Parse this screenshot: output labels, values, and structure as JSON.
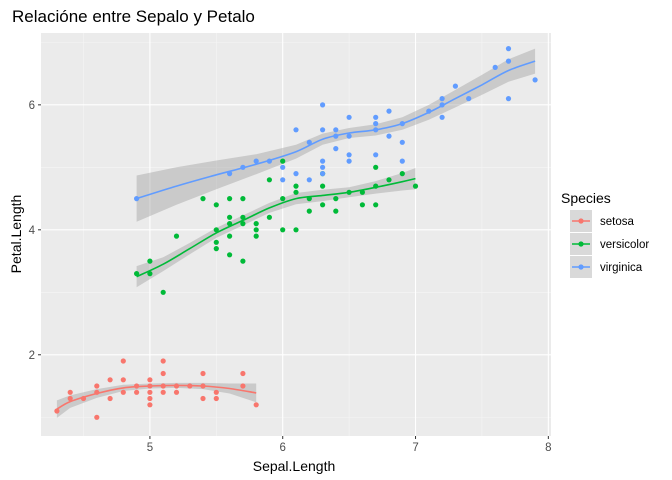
{
  "chart_data": {
    "type": "scatter",
    "title": "Relacióne entre Sepalo y Petalo",
    "xlabel": "Sepal.Length",
    "ylabel": "Petal.Length",
    "xlim": [
      4.18,
      8.02
    ],
    "ylim": [
      0.7,
      7.15
    ],
    "x_ticks": [
      5,
      6,
      7,
      8
    ],
    "x_tick_labels": [
      "5",
      "6",
      "7",
      "8"
    ],
    "y_ticks": [
      2,
      4,
      6
    ],
    "y_tick_labels": [
      "2",
      "4",
      "6"
    ],
    "grid": true,
    "legend": {
      "title": "Species",
      "position": "right"
    },
    "series": [
      {
        "name": "setosa",
        "color": "#F8766D",
        "points": [
          [
            4.3,
            1.1
          ],
          [
            4.4,
            1.3
          ],
          [
            4.4,
            1.4
          ],
          [
            4.5,
            1.3
          ],
          [
            4.6,
            1.0
          ],
          [
            4.6,
            1.4
          ],
          [
            4.6,
            1.5
          ],
          [
            4.7,
            1.3
          ],
          [
            4.7,
            1.6
          ],
          [
            4.8,
            1.4
          ],
          [
            4.8,
            1.6
          ],
          [
            4.8,
            1.9
          ],
          [
            4.9,
            1.4
          ],
          [
            4.9,
            1.5
          ],
          [
            5.0,
            1.2
          ],
          [
            5.0,
            1.3
          ],
          [
            5.0,
            1.4
          ],
          [
            5.0,
            1.5
          ],
          [
            5.0,
            1.6
          ],
          [
            5.1,
            1.4
          ],
          [
            5.1,
            1.5
          ],
          [
            5.1,
            1.7
          ],
          [
            5.1,
            1.9
          ],
          [
            5.2,
            1.4
          ],
          [
            5.2,
            1.5
          ],
          [
            5.3,
            1.5
          ],
          [
            5.4,
            1.3
          ],
          [
            5.4,
            1.5
          ],
          [
            5.4,
            1.7
          ],
          [
            5.5,
            1.3
          ],
          [
            5.5,
            1.4
          ],
          [
            5.7,
            1.5
          ],
          [
            5.7,
            1.7
          ],
          [
            5.8,
            1.2
          ]
        ],
        "smooth": [
          [
            4.3,
            1.13
          ],
          [
            4.4,
            1.25
          ],
          [
            4.6,
            1.38
          ],
          [
            4.8,
            1.47
          ],
          [
            5.0,
            1.5
          ],
          [
            5.2,
            1.51
          ],
          [
            5.4,
            1.5
          ],
          [
            5.6,
            1.46
          ],
          [
            5.8,
            1.39
          ]
        ],
        "ribbon_half_width": [
          0.14,
          0.1,
          0.07,
          0.05,
          0.04,
          0.04,
          0.05,
          0.08,
          0.15
        ]
      },
      {
        "name": "versicolor",
        "color": "#00BA38",
        "points": [
          [
            4.9,
            3.3
          ],
          [
            5.0,
            3.3
          ],
          [
            5.0,
            3.5
          ],
          [
            5.1,
            3.0
          ],
          [
            5.2,
            3.9
          ],
          [
            5.4,
            4.5
          ],
          [
            5.5,
            3.7
          ],
          [
            5.5,
            3.8
          ],
          [
            5.5,
            4.0
          ],
          [
            5.5,
            4.4
          ],
          [
            5.6,
            3.6
          ],
          [
            5.6,
            3.9
          ],
          [
            5.6,
            4.1
          ],
          [
            5.6,
            4.2
          ],
          [
            5.6,
            4.5
          ],
          [
            5.7,
            3.5
          ],
          [
            5.7,
            4.1
          ],
          [
            5.7,
            4.2
          ],
          [
            5.7,
            4.5
          ],
          [
            5.8,
            3.9
          ],
          [
            5.8,
            4.0
          ],
          [
            5.8,
            4.1
          ],
          [
            5.9,
            4.2
          ],
          [
            5.9,
            4.8
          ],
          [
            6.0,
            4.0
          ],
          [
            6.0,
            4.5
          ],
          [
            6.0,
            5.1
          ],
          [
            6.1,
            4.0
          ],
          [
            6.1,
            4.6
          ],
          [
            6.1,
            4.7
          ],
          [
            6.2,
            4.3
          ],
          [
            6.2,
            4.5
          ],
          [
            6.3,
            4.4
          ],
          [
            6.3,
            4.7
          ],
          [
            6.3,
            4.9
          ],
          [
            6.4,
            4.3
          ],
          [
            6.4,
            4.5
          ],
          [
            6.5,
            4.6
          ],
          [
            6.6,
            4.4
          ],
          [
            6.6,
            4.6
          ],
          [
            6.7,
            4.4
          ],
          [
            6.7,
            4.7
          ],
          [
            6.7,
            5.0
          ],
          [
            6.8,
            4.8
          ],
          [
            6.9,
            4.9
          ],
          [
            7.0,
            4.7
          ]
        ],
        "smooth": [
          [
            4.9,
            3.25
          ],
          [
            5.1,
            3.45
          ],
          [
            5.3,
            3.7
          ],
          [
            5.5,
            3.95
          ],
          [
            5.7,
            4.15
          ],
          [
            5.9,
            4.35
          ],
          [
            6.1,
            4.5
          ],
          [
            6.3,
            4.55
          ],
          [
            6.5,
            4.6
          ],
          [
            6.7,
            4.68
          ],
          [
            6.9,
            4.77
          ],
          [
            7.0,
            4.82
          ]
        ],
        "ribbon_half_width": [
          0.17,
          0.11,
          0.09,
          0.08,
          0.08,
          0.08,
          0.09,
          0.09,
          0.08,
          0.1,
          0.14,
          0.17
        ]
      },
      {
        "name": "virginica",
        "color": "#619CFF",
        "points": [
          [
            4.9,
            4.5
          ],
          [
            5.6,
            4.9
          ],
          [
            5.7,
            5.0
          ],
          [
            5.8,
            5.1
          ],
          [
            5.9,
            5.1
          ],
          [
            6.0,
            4.8
          ],
          [
            6.0,
            5.0
          ],
          [
            6.1,
            5.6
          ],
          [
            6.1,
            4.9
          ],
          [
            6.2,
            4.8
          ],
          [
            6.2,
            5.4
          ],
          [
            6.3,
            4.9
          ],
          [
            6.3,
            5.0
          ],
          [
            6.3,
            5.1
          ],
          [
            6.3,
            5.6
          ],
          [
            6.3,
            6.0
          ],
          [
            6.4,
            5.3
          ],
          [
            6.4,
            5.5
          ],
          [
            6.4,
            5.6
          ],
          [
            6.5,
            5.1
          ],
          [
            6.5,
            5.2
          ],
          [
            6.5,
            5.5
          ],
          [
            6.5,
            5.8
          ],
          [
            6.7,
            5.2
          ],
          [
            6.7,
            5.6
          ],
          [
            6.7,
            5.7
          ],
          [
            6.7,
            5.8
          ],
          [
            6.8,
            5.5
          ],
          [
            6.8,
            5.9
          ],
          [
            6.9,
            5.1
          ],
          [
            6.9,
            5.4
          ],
          [
            6.9,
            5.7
          ],
          [
            7.1,
            5.9
          ],
          [
            7.2,
            5.8
          ],
          [
            7.2,
            6.0
          ],
          [
            7.2,
            6.1
          ],
          [
            7.3,
            6.3
          ],
          [
            7.4,
            6.1
          ],
          [
            7.6,
            6.6
          ],
          [
            7.7,
            6.1
          ],
          [
            7.7,
            6.7
          ],
          [
            7.7,
            6.9
          ],
          [
            7.9,
            6.4
          ]
        ],
        "smooth": [
          [
            4.9,
            4.5
          ],
          [
            5.2,
            4.7
          ],
          [
            5.5,
            4.88
          ],
          [
            5.8,
            5.05
          ],
          [
            6.1,
            5.25
          ],
          [
            6.3,
            5.45
          ],
          [
            6.5,
            5.55
          ],
          [
            6.7,
            5.6
          ],
          [
            6.9,
            5.7
          ],
          [
            7.1,
            5.88
          ],
          [
            7.3,
            6.1
          ],
          [
            7.5,
            6.32
          ],
          [
            7.7,
            6.55
          ],
          [
            7.9,
            6.7
          ]
        ],
        "ribbon_half_width": [
          0.37,
          0.3,
          0.23,
          0.16,
          0.11,
          0.09,
          0.08,
          0.09,
          0.1,
          0.12,
          0.14,
          0.16,
          0.18,
          0.2
        ]
      }
    ]
  }
}
